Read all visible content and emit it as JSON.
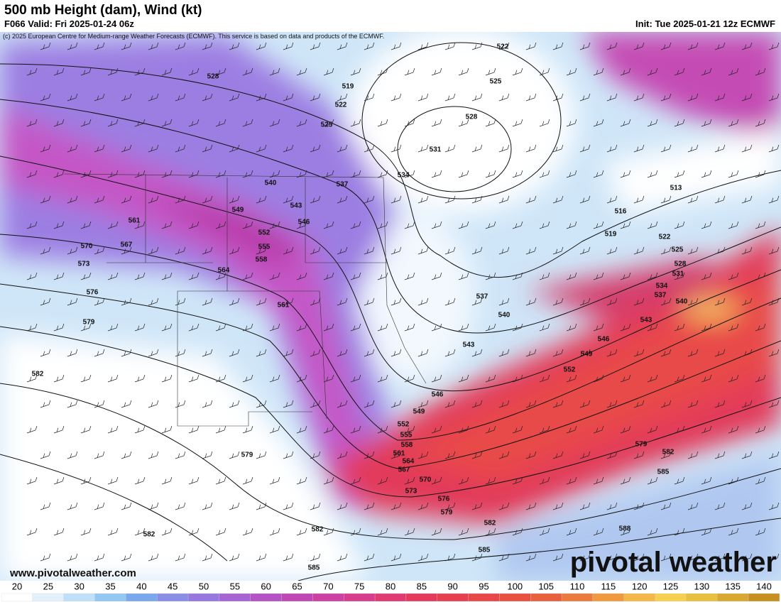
{
  "header": {
    "title": "500 mb Height (dam), Wind (kt)",
    "valid": "F066 Valid: Fri 2025-01-24 06z",
    "init": "Init: Tue 2025-01-21 12z ECMWF",
    "credit": "(c) 2025 European Centre for Medium-range Weather Forecasts (ECMWF). This service is based on data and products of the ECMWF."
  },
  "map": {
    "contour_labels": [
      "528",
      "519",
      "522",
      "525",
      "522",
      "525",
      "528",
      "531",
      "534",
      "537",
      "540",
      "543",
      "549",
      "546",
      "552",
      "555",
      "558",
      "561",
      "567",
      "570",
      "573",
      "576",
      "579",
      "564",
      "561",
      "537",
      "540",
      "543",
      "513",
      "516",
      "519",
      "522",
      "525",
      "528",
      "531",
      "534",
      "537",
      "540",
      "543",
      "546",
      "549",
      "552",
      "546",
      "549",
      "552",
      "555",
      "558",
      "561",
      "564",
      "567",
      "570",
      "573",
      "576",
      "579",
      "582",
      "585",
      "588",
      "585",
      "582",
      "579",
      "582",
      "579",
      "582",
      "582",
      "585"
    ]
  },
  "footer": {
    "website": "www.pivotalweather.com",
    "logo": "pivotal weather"
  },
  "colorbar": {
    "ticks": [
      20,
      25,
      30,
      35,
      40,
      45,
      50,
      55,
      60,
      65,
      70,
      75,
      80,
      85,
      90,
      95,
      100,
      105,
      110,
      115,
      120,
      125,
      130,
      135,
      140
    ],
    "colors": [
      "#ffffff",
      "#e4f1fc",
      "#bfe0f8",
      "#92c8f2",
      "#7aa8ec",
      "#8a8ee6",
      "#9678de",
      "#a664d4",
      "#b452c6",
      "#c048b4",
      "#cc42a2",
      "#d83c8c",
      "#e03a72",
      "#e43a5c",
      "#e64050",
      "#e84848",
      "#e85040",
      "#e8603c",
      "#ec7a3c",
      "#f09a40",
      "#f4b848",
      "#f6d050",
      "#e8c040",
      "#d8a830",
      "#c89020"
    ]
  }
}
